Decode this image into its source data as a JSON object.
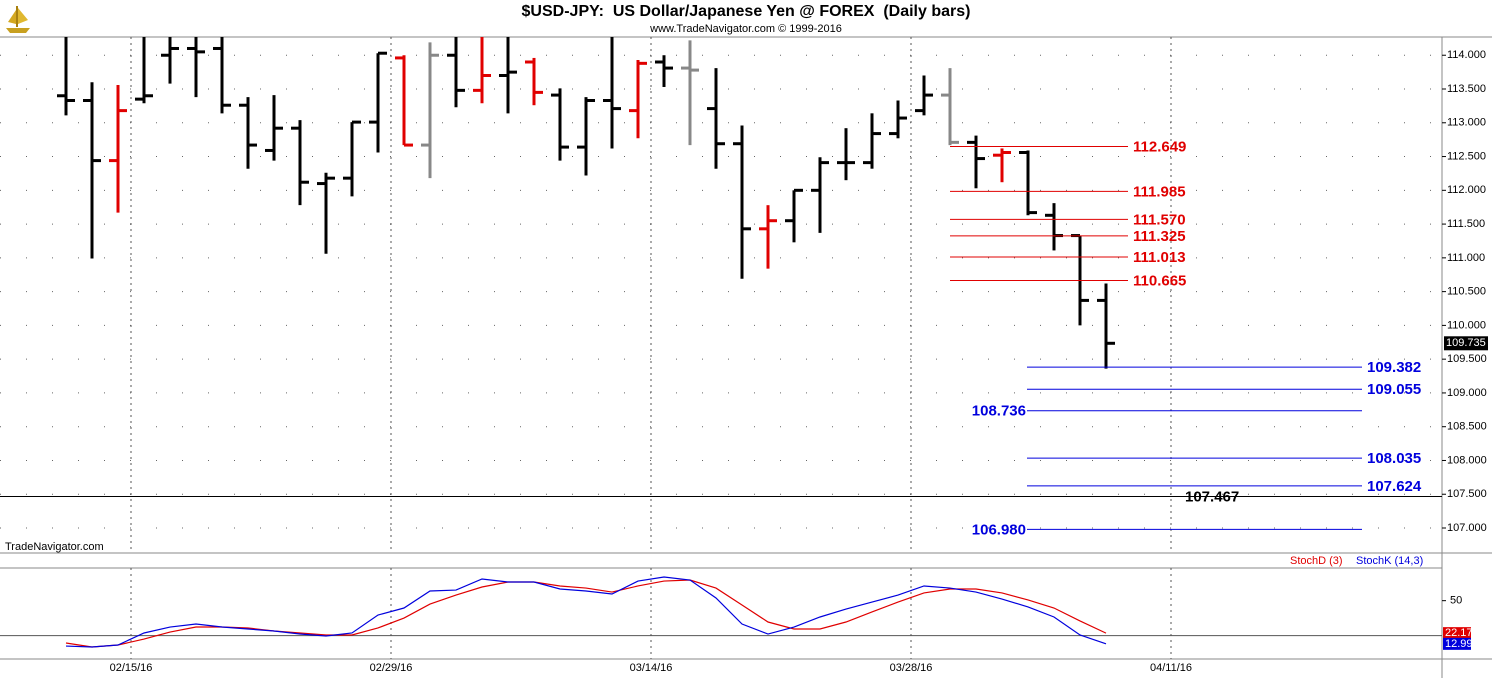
{
  "chart_data": [
    {
      "type": "ohlc",
      "title": "$USD-JPY:  US Dollar/Japanese Yen @ FOREX  (Daily bars)",
      "subtitle": "www.TradeNavigator.com © 1999-2016",
      "watermark": "TradeNavigator.com",
      "x": [
        "02/10/16",
        "02/11/16",
        "02/12/16",
        "02/15/16",
        "02/16/16",
        "02/17/16",
        "02/18/16",
        "02/19/16",
        "02/22/16",
        "02/23/16",
        "02/24/16",
        "02/25/16",
        "02/26/16",
        "02/29/16",
        "03/01/16",
        "03/02/16",
        "03/03/16",
        "03/04/16",
        "03/07/16",
        "03/08/16",
        "03/09/16",
        "03/10/16",
        "03/11/16",
        "03/14/16",
        "03/15/16",
        "03/16/16",
        "03/17/16",
        "03/18/16",
        "03/21/16",
        "03/22/16",
        "03/23/16",
        "03/24/16",
        "03/25/16",
        "03/28/16",
        "03/29/16",
        "03/30/16",
        "03/31/16",
        "04/01/16",
        "04/04/16",
        "04/05/16",
        "04/06/16"
      ],
      "open": [
        113.4,
        113.33,
        112.44,
        113.35,
        114.0,
        114.1,
        114.1,
        113.26,
        112.59,
        112.92,
        112.1,
        112.18,
        113.01,
        113.96,
        112.67,
        114.0,
        113.48,
        113.7,
        113.9,
        113.41,
        112.64,
        113.33,
        113.18,
        113.9,
        113.81,
        113.21,
        112.69,
        111.43,
        111.55,
        112.0,
        112.41,
        112.41,
        112.84,
        113.18,
        113.41,
        112.71,
        112.52,
        112.56,
        111.63,
        111.33,
        110.37
      ],
      "high": [
        114.4,
        113.6,
        113.56,
        114.35,
        114.35,
        114.35,
        114.3,
        113.38,
        113.41,
        113.04,
        112.26,
        113.01,
        114.03,
        114.0,
        114.19,
        114.3,
        114.3,
        114.3,
        113.96,
        113.51,
        113.38,
        114.3,
        113.93,
        114.0,
        114.22,
        113.81,
        112.96,
        111.78,
        112.0,
        112.49,
        112.92,
        113.14,
        113.33,
        113.7,
        113.81,
        112.81,
        112.62,
        112.59,
        111.81,
        111.33,
        110.62
      ],
      "low": [
        113.11,
        110.99,
        111.67,
        113.29,
        113.58,
        113.38,
        113.14,
        112.32,
        112.44,
        111.78,
        111.06,
        111.91,
        112.56,
        112.67,
        112.18,
        113.23,
        113.29,
        113.14,
        113.26,
        112.44,
        112.22,
        112.62,
        112.77,
        113.53,
        112.67,
        112.32,
        110.69,
        110.84,
        111.23,
        111.37,
        112.15,
        112.32,
        112.77,
        113.11,
        112.67,
        112.03,
        112.12,
        111.63,
        111.11,
        110.0,
        109.36
      ],
      "close": [
        113.33,
        112.44,
        113.18,
        113.4,
        114.1,
        114.05,
        113.26,
        112.67,
        112.92,
        112.12,
        112.18,
        113.01,
        114.03,
        112.67,
        114.0,
        113.48,
        113.7,
        113.75,
        113.45,
        112.64,
        113.33,
        113.21,
        113.88,
        113.81,
        113.78,
        112.69,
        111.43,
        111.55,
        112.0,
        112.41,
        112.41,
        112.84,
        113.07,
        113.41,
        112.71,
        112.47,
        112.56,
        111.67,
        111.33,
        110.37,
        109.735
      ],
      "colors": [
        "#000000",
        "#000000",
        "#e00000",
        "#000000",
        "#000000",
        "#000000",
        "#000000",
        "#000000",
        "#000000",
        "#000000",
        "#000000",
        "#000000",
        "#000000",
        "#e00000",
        "#888888",
        "#000000",
        "#e00000",
        "#000000",
        "#e00000",
        "#000000",
        "#000000",
        "#000000",
        "#e00000",
        "#000000",
        "#888888",
        "#000000",
        "#000000",
        "#e00000",
        "#000000",
        "#000000",
        "#000000",
        "#000000",
        "#000000",
        "#000000",
        "#888888",
        "#000000",
        "#e00000",
        "#000000",
        "#000000",
        "#000000",
        "#000000"
      ],
      "ylim": [
        106.63,
        114.27
      ],
      "yticks": [
        {
          "value": 107,
          "label": "107.000"
        },
        {
          "value": 107.5,
          "label": "107.500"
        },
        {
          "value": 108,
          "label": "108.000"
        },
        {
          "value": 108.5,
          "label": "108.500"
        },
        {
          "value": 109,
          "label": "109.000"
        },
        {
          "value": 109.5,
          "label": "109.500"
        },
        {
          "value": 110,
          "label": "110.000"
        },
        {
          "value": 110.5,
          "label": "110.500"
        },
        {
          "value": 111,
          "label": "111.000"
        },
        {
          "value": 111.5,
          "label": "111.500"
        },
        {
          "value": 112,
          "label": "112.000"
        },
        {
          "value": 112.5,
          "label": "112.500"
        },
        {
          "value": 113,
          "label": "113.000"
        },
        {
          "value": 113.5,
          "label": "113.500"
        },
        {
          "value": 114,
          "label": "114.000"
        }
      ],
      "xticks": [
        "02/15/16",
        "02/29/16",
        "03/14/16",
        "03/28/16",
        "04/11/16"
      ],
      "levels": [
        {
          "value": 112.649,
          "color": "#e00000",
          "side": "right"
        },
        {
          "value": 111.985,
          "color": "#e00000",
          "side": "right"
        },
        {
          "value": 111.57,
          "label": "111.570",
          "color": "#e00000",
          "side": "right"
        },
        {
          "value": 111.325,
          "color": "#e00000",
          "side": "right"
        },
        {
          "value": 111.013,
          "color": "#e00000",
          "side": "right"
        },
        {
          "value": 110.665,
          "color": "#e00000",
          "side": "right"
        },
        {
          "value": 109.382,
          "color": "#0000dd",
          "side": "right"
        },
        {
          "value": 109.055,
          "color": "#0000dd",
          "side": "right"
        },
        {
          "value": 108.736,
          "color": "#0000dd",
          "side": "left"
        },
        {
          "value": 108.035,
          "color": "#0000dd",
          "side": "right"
        },
        {
          "value": 107.624,
          "color": "#0000dd",
          "side": "right"
        },
        {
          "value": 106.98,
          "label": "106.980",
          "color": "#0000dd",
          "side": "left"
        },
        {
          "value": 107.467,
          "color": "#000000",
          "side": "right"
        }
      ]
    },
    {
      "type": "line",
      "series": [
        {
          "name": "StochD (3)",
          "color": "#e00000",
          "values": [
            13.7,
            10.3,
            12.0,
            17.1,
            23.1,
            27.4,
            27.4,
            26.6,
            24.0,
            22.3,
            20.6,
            20.6,
            26.6,
            35.1,
            47.1,
            54.8,
            61.7,
            66.0,
            66.0,
            62.6,
            60.8,
            57.4,
            62.6,
            66.8,
            67.7,
            60.8,
            46.3,
            31.7,
            25.7,
            25.7,
            31.7,
            40.3,
            48.8,
            56.6,
            60.0,
            60.0,
            56.6,
            50.6,
            43.7,
            32.6,
            22.17
          ]
        },
        {
          "name": "StochK (14,3)",
          "color": "#0000dd",
          "values": [
            11.1,
            10.3,
            12.0,
            22.3,
            27.4,
            30.0,
            27.4,
            25.7,
            24.0,
            21.4,
            19.7,
            22.3,
            37.7,
            43.7,
            58.3,
            59.1,
            68.6,
            66.0,
            66.0,
            60.0,
            58.3,
            55.7,
            66.8,
            70.3,
            67.7,
            52.3,
            30.0,
            21.4,
            27.4,
            36.0,
            42.8,
            48.8,
            54.8,
            62.6,
            60.8,
            57.4,
            51.4,
            44.6,
            36.0,
            20.6,
            12.99
          ]
        }
      ],
      "ylim": [
        0,
        78
      ],
      "yticks": [
        50
      ],
      "hline": 20
    }
  ]
}
